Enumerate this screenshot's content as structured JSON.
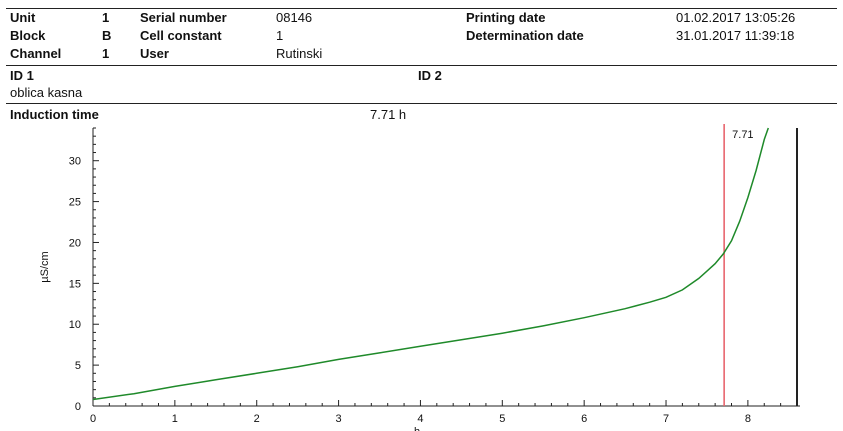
{
  "header": {
    "unit_label": "Unit",
    "unit_value": "1",
    "serial_label": "Serial number",
    "serial_value": "08146",
    "printing_label": "Printing date",
    "printing_value": "01.02.2017 13:05:26",
    "block_label": "Block",
    "block_value": "B",
    "cell_label": "Cell constant",
    "cell_value": "1",
    "determination_label": "Determination date",
    "determination_value": "31.01.2017 11:39:18",
    "channel_label": "Channel",
    "channel_value": "1",
    "user_label": "User",
    "user_value": "Rutinski"
  },
  "ids": {
    "id1_label": "ID 1",
    "id1_value": "oblica  kasna",
    "id2_label": "ID 2"
  },
  "result": {
    "label": "Induction time",
    "value": "7.71 h"
  },
  "colors": {
    "curve": "#1f8a2a",
    "marker": "#e8666e",
    "axis": "#222222"
  },
  "chart_data": {
    "type": "line",
    "xlabel": "h",
    "ylabel": "µS/cm",
    "xlim": [
      0,
      8.6
    ],
    "ylim": [
      0,
      34
    ],
    "x_ticks": [
      0,
      1,
      2,
      3,
      4,
      5,
      6,
      7,
      8
    ],
    "y_ticks": [
      0,
      5,
      10,
      15,
      20,
      25,
      30
    ],
    "series": [
      {
        "x": [
          0,
          0.5,
          1,
          1.5,
          2,
          2.5,
          3,
          3.5,
          4,
          4.5,
          5,
          5.5,
          6,
          6.5,
          6.8,
          7.0,
          7.2,
          7.4,
          7.5,
          7.6,
          7.7,
          7.8,
          7.9,
          8.0,
          8.1,
          8.2,
          8.25
        ],
        "y": [
          0.8,
          1.5,
          2.4,
          3.2,
          4.0,
          4.8,
          5.7,
          6.5,
          7.3,
          8.1,
          8.9,
          9.8,
          10.8,
          11.9,
          12.7,
          13.3,
          14.2,
          15.6,
          16.5,
          17.4,
          18.6,
          20.2,
          22.6,
          25.5,
          28.8,
          32.6,
          34.0
        ]
      }
    ],
    "marker": {
      "x": 7.71,
      "label": "7.71"
    }
  }
}
